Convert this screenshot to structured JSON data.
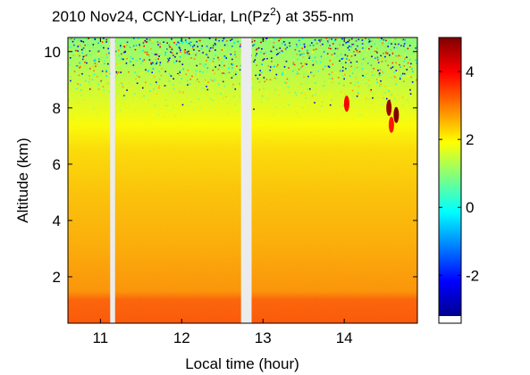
{
  "chart_data": {
    "type": "heatmap",
    "title": "2010 Nov24, CCNY-Lidar, Ln(Pz",
    "title_sup": "2",
    "title_suffix": ") at 355-nm",
    "xlabel": "Local time (hour)",
    "ylabel": "Altitude (km)",
    "xlim": [
      10.6,
      14.9
    ],
    "ylim": [
      0.35,
      10.5
    ],
    "x_ticks": [
      {
        "value": 11,
        "label": "11"
      },
      {
        "value": 12,
        "label": "12"
      },
      {
        "value": 13,
        "label": "13"
      },
      {
        "value": 14,
        "label": "14"
      }
    ],
    "y_ticks": [
      {
        "value": 2,
        "label": "2"
      },
      {
        "value": 4,
        "label": "4"
      },
      {
        "value": 6,
        "label": "6"
      },
      {
        "value": 8,
        "label": "8"
      },
      {
        "value": 10,
        "label": "10"
      }
    ],
    "colorbar": {
      "colormap": "jet",
      "range": [
        -3.2,
        5
      ],
      "ticks": [
        {
          "value": -2,
          "label": "-2"
        },
        {
          "value": 0,
          "label": "0"
        },
        {
          "value": 2,
          "label": "2"
        },
        {
          "value": 4,
          "label": "4"
        }
      ]
    },
    "data_gaps": [
      {
        "start": 11.12,
        "end": 11.18
      },
      {
        "start": 12.73,
        "end": 12.86
      }
    ],
    "signal_profile": {
      "altitude_km": [
        0.4,
        1.2,
        1.5,
        3,
        5,
        6.5,
        7.5,
        8.5,
        9.5,
        10.5
      ],
      "value": [
        3.3,
        3.2,
        2.8,
        2.6,
        2.4,
        2.2,
        1.9,
        1.6,
        1.3,
        1.0
      ]
    },
    "cloud_features": [
      {
        "time": 14.03,
        "altitude_km": 8.15,
        "value": 4.0
      },
      {
        "time": 14.55,
        "altitude_km": 8.0,
        "value": 4.8
      },
      {
        "time": 14.64,
        "altitude_km": 7.75,
        "value": 5.0
      },
      {
        "time": 14.58,
        "altitude_km": 7.4,
        "value": 3.8
      }
    ]
  }
}
